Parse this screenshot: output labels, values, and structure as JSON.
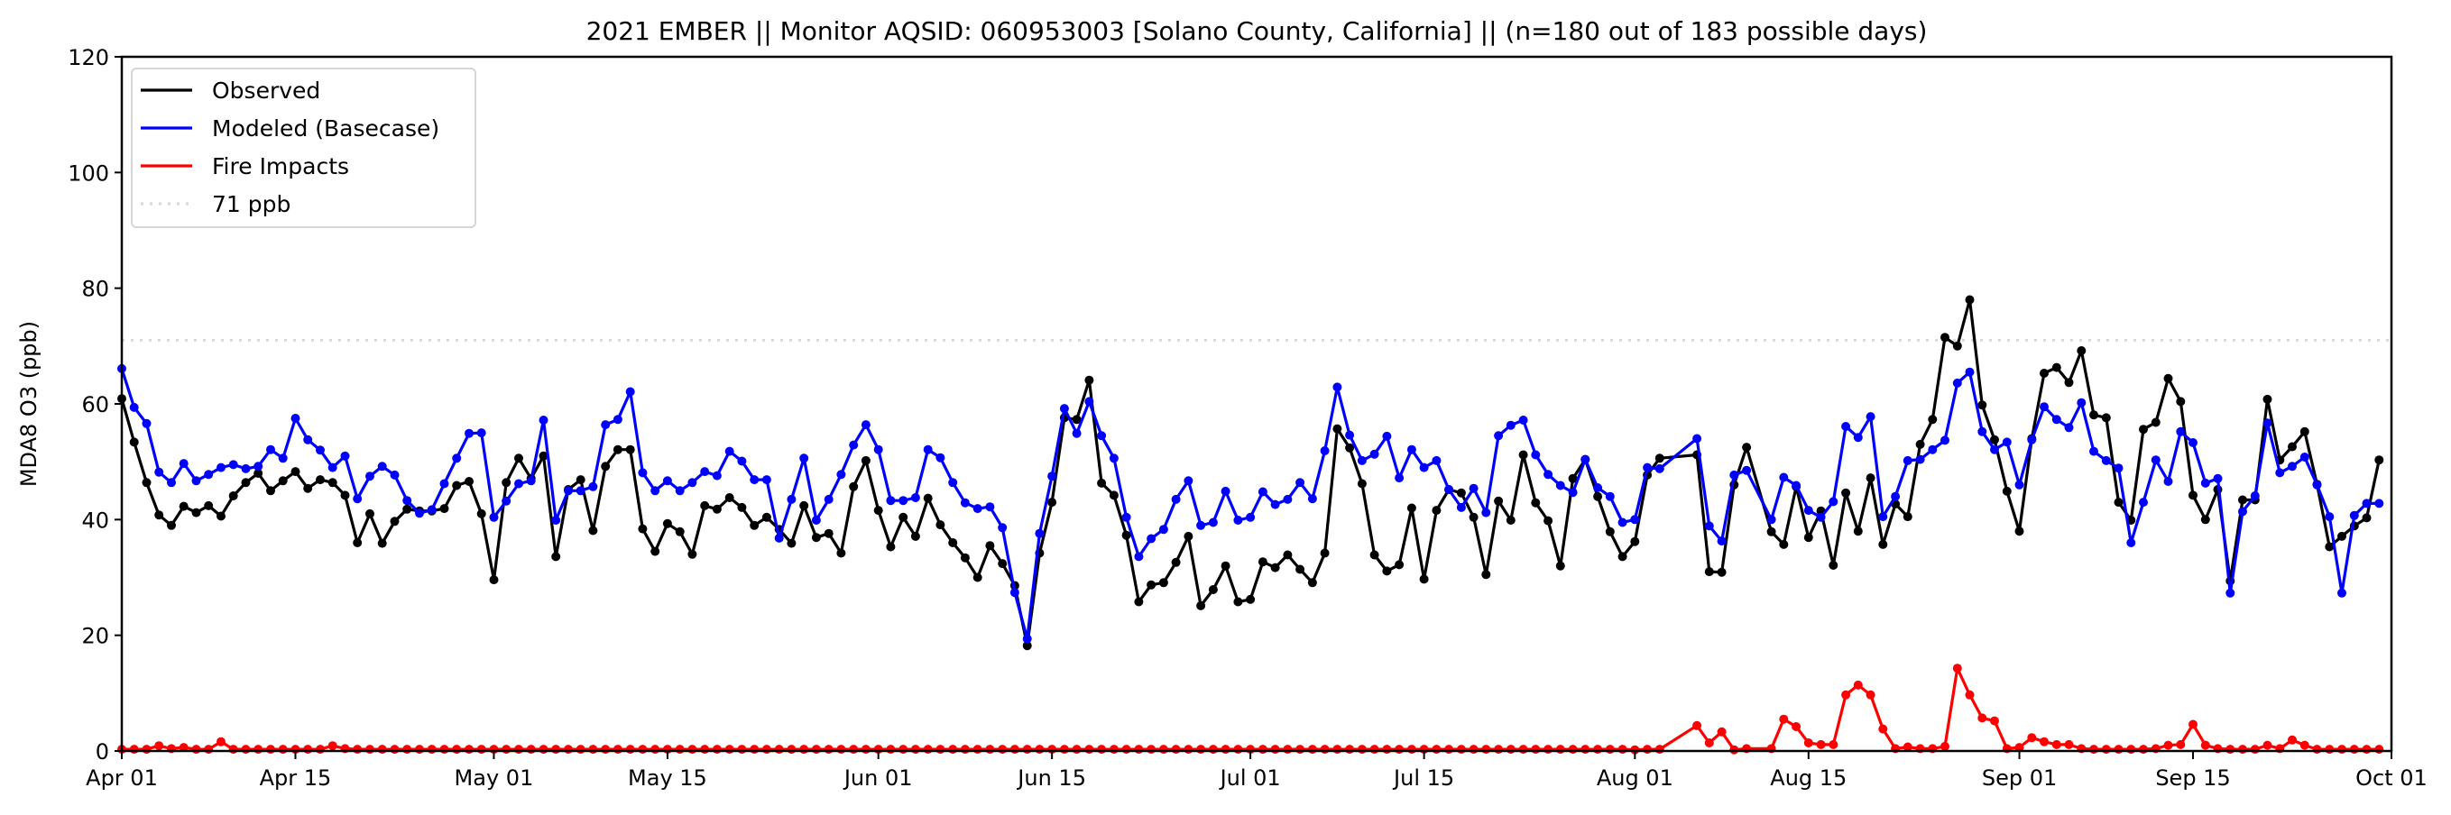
{
  "chart_data": {
    "type": "line",
    "title": "2021 EMBER || Monitor AQSID: 060953003 [Solano County, California] || (n=180 out of 183 possible days)",
    "xlabel": "",
    "ylabel": "MDA8 O3 (ppb)",
    "ylim": [
      0,
      120
    ],
    "yticks": [
      "0",
      "20",
      "40",
      "60",
      "80",
      "100",
      "120"
    ],
    "x_start": "2021-04-01",
    "x_days_total": 183,
    "xticks": [
      {
        "label": "Apr 01",
        "day": 0
      },
      {
        "label": "Apr 15",
        "day": 14
      },
      {
        "label": "May 01",
        "day": 30
      },
      {
        "label": "May 15",
        "day": 44
      },
      {
        "label": "Jun 01",
        "day": 61
      },
      {
        "label": "Jun 15",
        "day": 75
      },
      {
        "label": "Jul 01",
        "day": 91
      },
      {
        "label": "Jul 15",
        "day": 105
      },
      {
        "label": "Aug 01",
        "day": 122
      },
      {
        "label": "Aug 15",
        "day": 136
      },
      {
        "label": "Sep 01",
        "day": 153
      },
      {
        "label": "Sep 15",
        "day": 167
      },
      {
        "label": "Oct 01",
        "day": 183
      }
    ],
    "grid": false,
    "legend_position": "top-left",
    "threshold": {
      "label": "71 ppb",
      "value": 71,
      "color": "#d9d9d9"
    },
    "series": [
      {
        "name": "Observed",
        "color": "#000000",
        "values": [
          60.9,
          53.4,
          46.4,
          40.8,
          39,
          42.3,
          41.2,
          42.4,
          40.6,
          44.1,
          46.4,
          48,
          45,
          46.7,
          48.3,
          45.4,
          46.9,
          46.4,
          44.2,
          36,
          41,
          35.9,
          39.7,
          41.8,
          41.5,
          41.5,
          41.9,
          45.9,
          46.6,
          41,
          29.6,
          46.4,
          50.6,
          47.1,
          51,
          33.6,
          45.2,
          46.9,
          38.1,
          49.2,
          52.1,
          52.1,
          38.4,
          34.5,
          39.3,
          37.9,
          34,
          42.4,
          41.8,
          43.8,
          42.1,
          39,
          40.4,
          38.3,
          35.9,
          42.4,
          36.9,
          37.6,
          34.2,
          45.7,
          50.2,
          41.6,
          35.3,
          40.4,
          37.1,
          43.7,
          39.1,
          36,
          33.4,
          30,
          35.5,
          32.4,
          28.6,
          18.2,
          34.2,
          43,
          57.6,
          57.3,
          64.1,
          46.3,
          44.2,
          37.3,
          25.8,
          28.7,
          29.1,
          32.6,
          37.1,
          25.1,
          27.9,
          32,
          25.8,
          26.2,
          32.7,
          31.7,
          33.9,
          31.4,
          29.1,
          34.2,
          55.7,
          52.4,
          46.2,
          33.9,
          31.1,
          32.2,
          42,
          29.7,
          41.6,
          45.2,
          44.6,
          40.4,
          30.5,
          43.2,
          39.9,
          51.2,
          42.9,
          39.8,
          32,
          47.1,
          50.4,
          44,
          37.9,
          33.6,
          36.2,
          47.7,
          50.6,
          null,
          null,
          51.2,
          31,
          30.9,
          46,
          52.5,
          null,
          37.9,
          35.7,
          45.7,
          36.9,
          41.5,
          32.1,
          44.6,
          38,
          47.2,
          35.7,
          42.7,
          40.5,
          53,
          57.3,
          71.5,
          70,
          78,
          59.8,
          53.8,
          44.9,
          38,
          54,
          65.3,
          66.3,
          63.7,
          69.2,
          58.1,
          57.6,
          43,
          39.9,
          55.6,
          56.8,
          64.4,
          60.4,
          44.2,
          40,
          45.2,
          29.4,
          43.4,
          43.4,
          60.8,
          50.3,
          52.6,
          55.2,
          46.1,
          35.3,
          37.1,
          38.9,
          40.3,
          50.3
        ]
      },
      {
        "name": "Modeled (Basecase)",
        "color": "#0000ff",
        "values": [
          66.1,
          59.4,
          56.6,
          48.2,
          46.4,
          49.7,
          46.7,
          47.8,
          49,
          49.5,
          48.8,
          49.2,
          52.1,
          50.6,
          57.5,
          53.8,
          52,
          49,
          51,
          43.6,
          47.5,
          49.2,
          47.7,
          43.3,
          41.1,
          41.7,
          46.2,
          50.6,
          54.9,
          55,
          40.4,
          43.2,
          46.2,
          46.7,
          57.2,
          39.9,
          45,
          45,
          45.7,
          56.4,
          57.3,
          62.1,
          48.1,
          45,
          46.7,
          45,
          46.4,
          48.3,
          47.6,
          51.8,
          50.1,
          46.9,
          46.9,
          36.8,
          43.5,
          50.6,
          39.9,
          43.5,
          47.8,
          52.9,
          56.4,
          52.1,
          43.3,
          43.3,
          43.8,
          52.1,
          50.7,
          46.4,
          42.9,
          41.9,
          42.2,
          38.6,
          27.4,
          19.4,
          37.6,
          47.5,
          59.2,
          54.9,
          60.4,
          54.5,
          50.6,
          40.4,
          33.6,
          36.7,
          38.3,
          43.5,
          46.7,
          39,
          39.5,
          44.9,
          39.9,
          40.4,
          44.8,
          42.6,
          43.5,
          46.4,
          43.6,
          51.9,
          62.9,
          54.6,
          50.2,
          51.3,
          54.4,
          47.2,
          52.1,
          49,
          50.2,
          45.2,
          42.1,
          45.4,
          41.2,
          54.5,
          56.3,
          57.2,
          51.2,
          47.8,
          45.9,
          44.7,
          50.4,
          45.5,
          44,
          39.5,
          40,
          49,
          48.8,
          null,
          null,
          54,
          38.9,
          36.3,
          47.7,
          48.5,
          null,
          40,
          47.3,
          45.9,
          41.6,
          40.4,
          43.1,
          56.1,
          54.2,
          57.8,
          40.5,
          44,
          50.2,
          50.4,
          52.1,
          53.7,
          63.6,
          65.5,
          55.2,
          52.1,
          53.4,
          46,
          53.8,
          59.5,
          57.3,
          55.9,
          60.2,
          51.8,
          50.2,
          48.9,
          36,
          43,
          50.3,
          46.6,
          55.2,
          53.3,
          46.3,
          47.1,
          27.3,
          41.4,
          44.1,
          56.7,
          48.1,
          49.2,
          50.8,
          46,
          40.5,
          27.3,
          40.7,
          42.8,
          42.8
        ]
      },
      {
        "name": "Fire Impacts",
        "color": "#ff0000",
        "values": [
          0.3,
          0.3,
          0.3,
          0.9,
          0.4,
          0.6,
          0.3,
          0.3,
          1.6,
          0.3,
          0.3,
          0.3,
          0.3,
          0.3,
          0.3,
          0.3,
          0.3,
          0.9,
          0.4,
          0.3,
          0.3,
          0.3,
          0.3,
          0.3,
          0.3,
          0.3,
          0.3,
          0.3,
          0.3,
          0.3,
          0.3,
          0.3,
          0.3,
          0.3,
          0.3,
          0.3,
          0.3,
          0.3,
          0.3,
          0.3,
          0.3,
          0.3,
          0.3,
          0.3,
          0.3,
          0.3,
          0.3,
          0.3,
          0.3,
          0.3,
          0.3,
          0.3,
          0.3,
          0.3,
          0.3,
          0.3,
          0.3,
          0.3,
          0.3,
          0.3,
          0.3,
          0.3,
          0.3,
          0.3,
          0.3,
          0.3,
          0.3,
          0.3,
          0.3,
          0.3,
          0.3,
          0.3,
          0.3,
          0.3,
          0.3,
          0.3,
          0.3,
          0.3,
          0.3,
          0.3,
          0.3,
          0.3,
          0.3,
          0.3,
          0.3,
          0.3,
          0.3,
          0.3,
          0.3,
          0.3,
          0.3,
          0.3,
          0.3,
          0.3,
          0.3,
          0.3,
          0.3,
          0.3,
          0.3,
          0.3,
          0.3,
          0.3,
          0.3,
          0.3,
          0.3,
          0.3,
          0.3,
          0.3,
          0.3,
          0.3,
          0.3,
          0.3,
          0.3,
          0.3,
          0.3,
          0.3,
          0.3,
          0.3,
          0.3,
          0.3,
          0.3,
          0.3,
          0.2,
          0.3,
          0.3,
          null,
          null,
          4.4,
          1.4,
          3.3,
          0.2,
          0.4,
          null,
          0.4,
          5.5,
          4.2,
          1.4,
          1.1,
          1.1,
          9.7,
          11.4,
          9.7,
          3.8,
          0.4,
          0.7,
          0.4,
          0.4,
          0.8,
          14.3,
          9.7,
          5.7,
          5.2,
          0.4,
          0.6,
          2.3,
          1.6,
          1.1,
          1.1,
          0.4,
          0.3,
          0.3,
          0.3,
          0.3,
          0.3,
          0.4,
          1,
          1.1,
          4.6,
          1,
          0.4,
          0.3,
          0.3,
          0.3,
          1,
          0.4,
          1.9,
          1,
          0.3,
          0.3,
          0.3,
          0.3,
          0.3,
          0.3
        ]
      }
    ]
  }
}
